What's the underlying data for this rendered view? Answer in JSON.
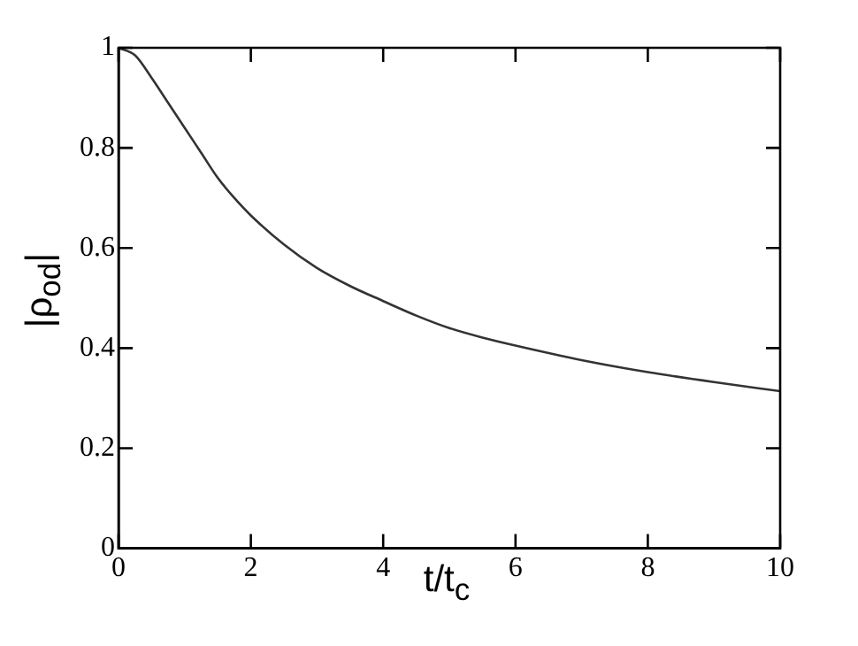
{
  "chart_data": {
    "type": "line",
    "xlabel": "t/t$_{c}$",
    "ylabel": "|ρ$_{od}$|",
    "x": [
      0,
      0.25,
      0.5,
      0.75,
      1,
      1.25,
      1.5,
      1.75,
      2,
      2.5,
      3,
      3.5,
      4,
      4.5,
      5,
      5.5,
      6,
      7,
      8,
      9,
      10
    ],
    "series": [
      {
        "color": "#333333",
        "values": [
          1,
          0.985,
          0.94,
          0.89,
          0.84,
          0.79,
          0.74,
          0.7,
          0.665,
          0.607,
          0.56,
          0.524,
          0.494,
          0.465,
          0.44,
          0.421,
          0.405,
          0.376,
          0.352,
          0.332,
          0.314
        ]
      }
    ],
    "xlim": [
      0,
      10
    ],
    "xticks": [
      0,
      2,
      4,
      6,
      8,
      10
    ],
    "ylim": [
      0,
      1
    ],
    "yticks": [
      0,
      0.2,
      0.4,
      0.6,
      0.8,
      1
    ],
    "grid": false,
    "legend": false,
    "marker": "none",
    "line_style": "solid"
  }
}
